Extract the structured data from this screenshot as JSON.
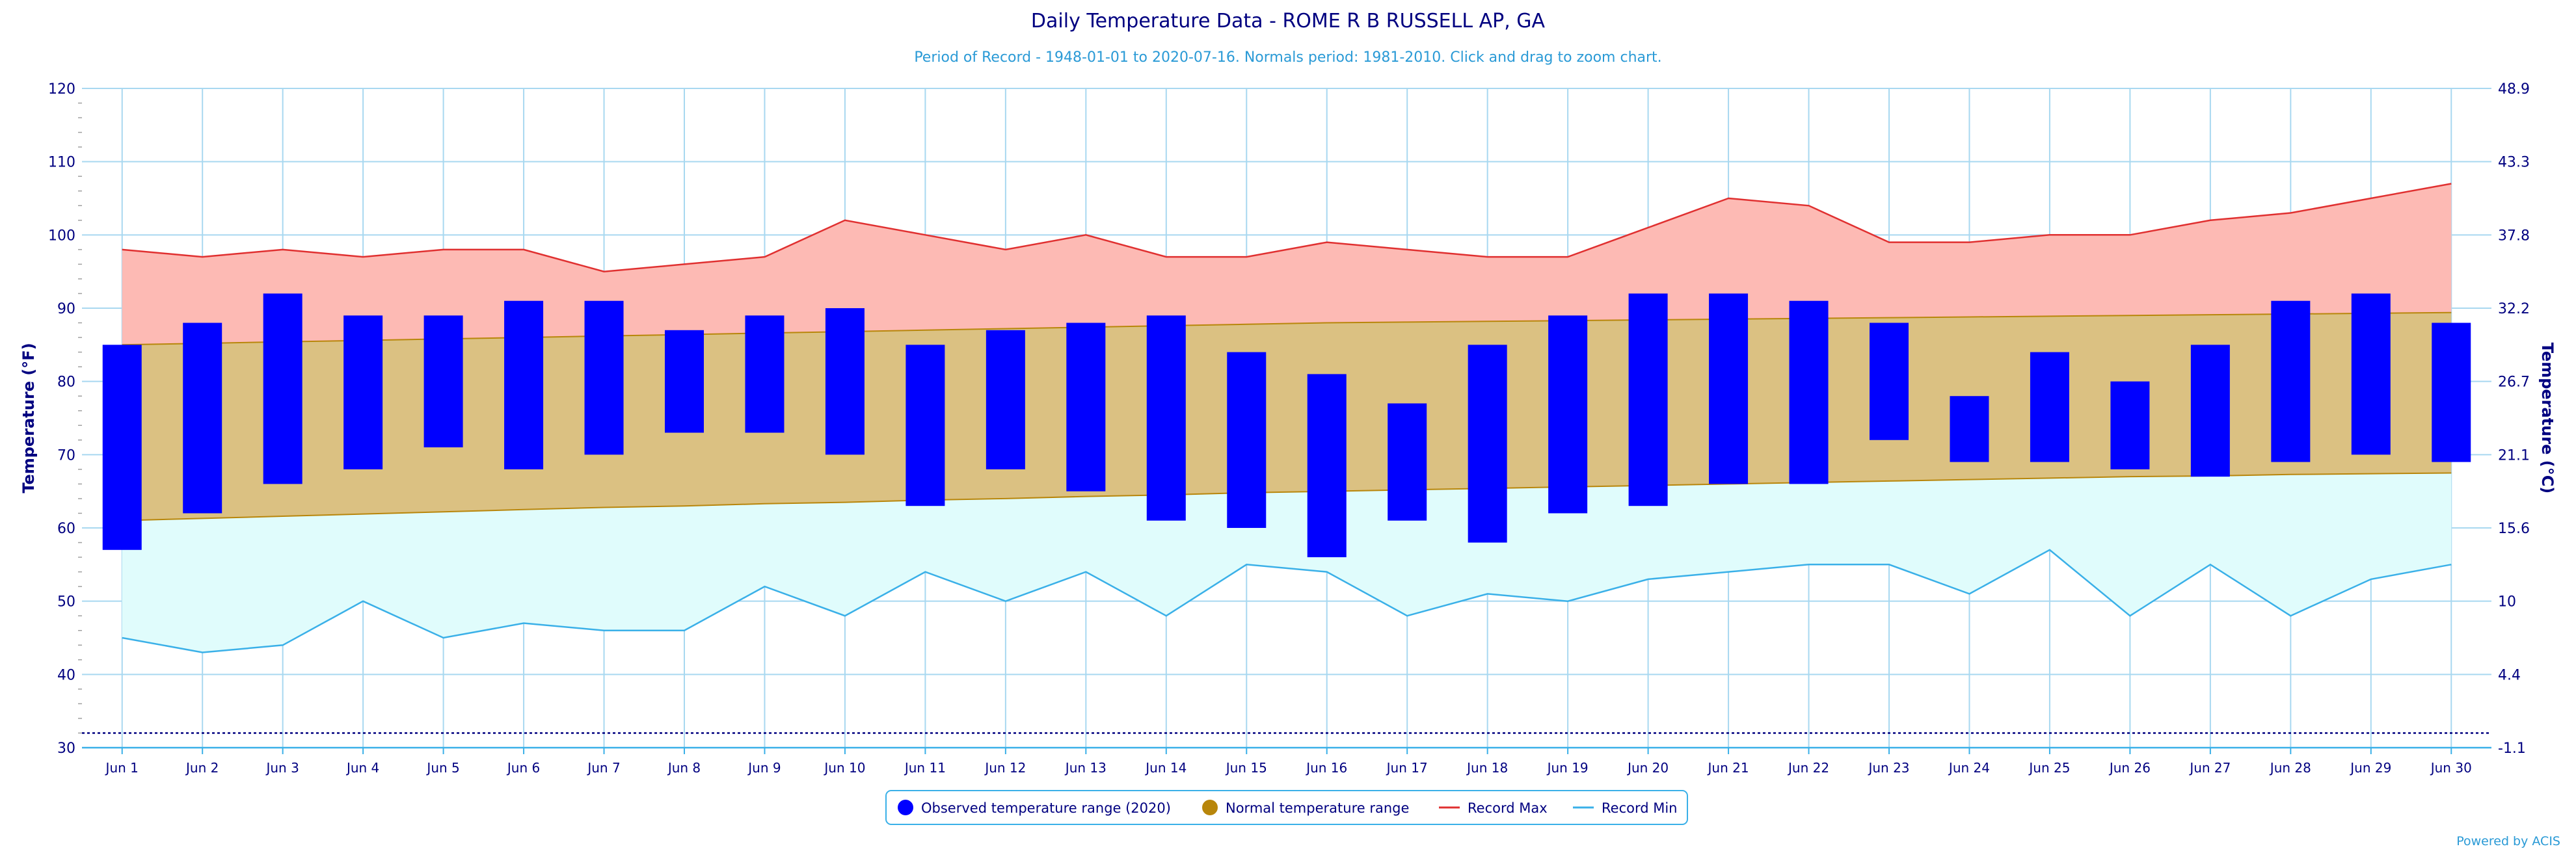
{
  "chart_data": {
    "type": "bar",
    "title": "Daily Temperature Data - ROME R B RUSSELL AP, GA",
    "subtitle": "Period of Record - 1948-01-01 to 2020-07-16. Normals period: 1981-2010. Click and drag to zoom chart.",
    "ylabel": "Temperature (°F)",
    "ylabel_right": "Temperature (°C)",
    "ylim": [
      30,
      120
    ],
    "yticks": [
      30,
      40,
      50,
      60,
      70,
      80,
      90,
      100,
      110,
      120
    ],
    "yticks_right": [
      "-1.1",
      "4.4",
      "10",
      "15.6",
      "21.1",
      "26.7",
      "32.2",
      "37.8",
      "43.3",
      "48.9"
    ],
    "freezing_line": 32,
    "grid": true,
    "categories": [
      "Jun 1",
      "Jun 2",
      "Jun 3",
      "Jun 4",
      "Jun 5",
      "Jun 6",
      "Jun 7",
      "Jun 8",
      "Jun 9",
      "Jun 10",
      "Jun 11",
      "Jun 12",
      "Jun 13",
      "Jun 14",
      "Jun 15",
      "Jun 16",
      "Jun 17",
      "Jun 18",
      "Jun 19",
      "Jun 20",
      "Jun 21",
      "Jun 22",
      "Jun 23",
      "Jun 24",
      "Jun 25",
      "Jun 26",
      "Jun 27",
      "Jun 28",
      "Jun 29",
      "Jun 30"
    ],
    "series": [
      {
        "name": "Observed temperature range (2020)",
        "type": "range-bar",
        "color": "#0000ff",
        "low": [
          57,
          62,
          66,
          68,
          71,
          68,
          70,
          73,
          73,
          70,
          63,
          68,
          65,
          61,
          60,
          56,
          61,
          58,
          62,
          63,
          66,
          66,
          72,
          69,
          69,
          68,
          67,
          69,
          70,
          69
        ],
        "high": [
          85,
          88,
          92,
          89,
          89,
          91,
          91,
          87,
          89,
          90,
          85,
          87,
          88,
          89,
          84,
          81,
          77,
          85,
          89,
          92,
          92,
          91,
          88,
          78,
          84,
          80,
          85,
          91,
          92,
          88
        ]
      },
      {
        "name": "Normal temperature range",
        "type": "range-area",
        "color": "#b8860b",
        "fill": "#dbc182",
        "low": [
          61,
          61.3,
          61.6,
          61.9,
          62.2,
          62.5,
          62.8,
          63,
          63.3,
          63.5,
          63.8,
          64,
          64.3,
          64.5,
          64.8,
          65,
          65.2,
          65.4,
          65.6,
          65.8,
          66,
          66.2,
          66.4,
          66.6,
          66.8,
          67,
          67.1,
          67.3,
          67.4,
          67.5
        ],
        "high": [
          85,
          85.2,
          85.4,
          85.6,
          85.8,
          86,
          86.2,
          86.4,
          86.6,
          86.8,
          87,
          87.2,
          87.4,
          87.6,
          87.8,
          88,
          88.1,
          88.2,
          88.3,
          88.4,
          88.5,
          88.6,
          88.7,
          88.8,
          88.9,
          89,
          89.1,
          89.2,
          89.3,
          89.4
        ]
      },
      {
        "name": "Record Max",
        "type": "line",
        "color": "#e03030",
        "fill": "#fdbab4",
        "values": [
          98,
          97,
          98,
          97,
          98,
          98,
          95,
          96,
          97,
          102,
          100,
          98,
          100,
          97,
          97,
          99,
          98,
          97,
          97,
          101,
          105,
          104,
          99,
          99,
          100,
          100,
          102,
          103,
          105,
          107
        ]
      },
      {
        "name": "Record Min",
        "type": "line",
        "color": "#3ab0e8",
        "fill": "#e0fcfc",
        "values": [
          45,
          43,
          44,
          50,
          45,
          47,
          46,
          46,
          52,
          48,
          54,
          50,
          54,
          48,
          55,
          54,
          48,
          51,
          50,
          53,
          54,
          55,
          55,
          51,
          57,
          48,
          55,
          48,
          53,
          55
        ]
      }
    ],
    "legend_position": "bottom-center"
  },
  "credit": "Powered by ACIS"
}
